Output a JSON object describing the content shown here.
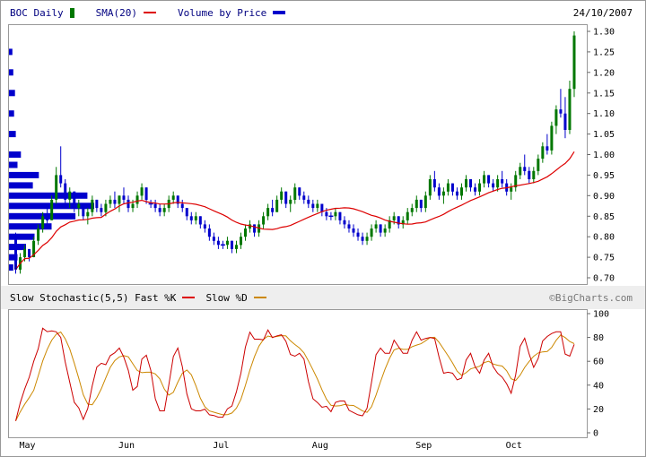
{
  "header": {
    "symbol_label": "BOC Daily",
    "sma_label": "SMA(20)",
    "vbp_label": "Volume by Price",
    "date": "24/10/2007"
  },
  "footer_legend": {
    "stoch_label": "Slow Stochastic(5,5) Fast %K",
    "slowd_label": "Slow %D",
    "copyright": "©BigCharts.com"
  },
  "colors": {
    "up": "#007700",
    "down": "#0000cc",
    "sma": "#dd0000",
    "vbp": "#0000cc",
    "panel_border": "#999999",
    "legend_text": "#000080",
    "copyright_text": "#777777",
    "separator_bg": "#eeeeee"
  },
  "chart_data": [
    {
      "type": "candlestick",
      "title": "BOC Daily",
      "ylim": [
        0.7,
        1.3
      ],
      "y_ticks": [
        0.7,
        0.75,
        0.8,
        0.85,
        0.9,
        0.95,
        1.0,
        1.05,
        1.1,
        1.15,
        1.2,
        1.25,
        1.3
      ],
      "months": [
        "May",
        "Jun",
        "Jul",
        "Aug",
        "Sep",
        "Oct"
      ],
      "month_start_index": [
        0,
        22,
        43,
        65,
        88,
        108
      ],
      "sma_period": 20,
      "ohlc": [
        [
          0.8,
          0.81,
          0.71,
          0.72
        ],
        [
          0.72,
          0.76,
          0.71,
          0.75
        ],
        [
          0.75,
          0.78,
          0.74,
          0.77
        ],
        [
          0.77,
          0.77,
          0.74,
          0.75
        ],
        [
          0.75,
          0.8,
          0.75,
          0.79
        ],
        [
          0.79,
          0.83,
          0.78,
          0.82
        ],
        [
          0.82,
          0.86,
          0.81,
          0.85
        ],
        [
          0.85,
          0.88,
          0.83,
          0.84
        ],
        [
          0.84,
          0.9,
          0.84,
          0.89
        ],
        [
          0.89,
          0.97,
          0.88,
          0.95
        ],
        [
          0.95,
          1.02,
          0.92,
          0.93
        ],
        [
          0.93,
          0.94,
          0.88,
          0.89
        ],
        [
          0.89,
          0.92,
          0.87,
          0.91
        ],
        [
          0.91,
          0.91,
          0.86,
          0.87
        ],
        [
          0.87,
          0.89,
          0.85,
          0.88
        ],
        [
          0.88,
          0.88,
          0.84,
          0.85
        ],
        [
          0.85,
          0.87,
          0.83,
          0.86
        ],
        [
          0.86,
          0.9,
          0.85,
          0.89
        ],
        [
          0.89,
          0.89,
          0.86,
          0.87
        ],
        [
          0.87,
          0.88,
          0.85,
          0.86
        ],
        [
          0.86,
          0.89,
          0.85,
          0.88
        ],
        [
          0.88,
          0.9,
          0.87,
          0.89
        ],
        [
          0.89,
          0.91,
          0.87,
          0.88
        ],
        [
          0.88,
          0.9,
          0.86,
          0.9
        ],
        [
          0.9,
          0.92,
          0.88,
          0.89
        ],
        [
          0.89,
          0.9,
          0.86,
          0.87
        ],
        [
          0.87,
          0.89,
          0.86,
          0.88
        ],
        [
          0.88,
          0.91,
          0.87,
          0.9
        ],
        [
          0.9,
          0.93,
          0.89,
          0.92
        ],
        [
          0.92,
          0.92,
          0.88,
          0.89
        ],
        [
          0.88,
          0.89,
          0.87,
          0.88
        ],
        [
          0.88,
          0.89,
          0.86,
          0.87
        ],
        [
          0.87,
          0.88,
          0.85,
          0.86
        ],
        [
          0.86,
          0.88,
          0.85,
          0.87
        ],
        [
          0.87,
          0.9,
          0.86,
          0.89
        ],
        [
          0.89,
          0.91,
          0.88,
          0.9
        ],
        [
          0.9,
          0.9,
          0.87,
          0.88
        ],
        [
          0.88,
          0.89,
          0.86,
          0.87
        ],
        [
          0.87,
          0.87,
          0.84,
          0.85
        ],
        [
          0.85,
          0.86,
          0.83,
          0.84
        ],
        [
          0.84,
          0.86,
          0.83,
          0.85
        ],
        [
          0.85,
          0.85,
          0.82,
          0.83
        ],
        [
          0.83,
          0.84,
          0.81,
          0.82
        ],
        [
          0.82,
          0.83,
          0.79,
          0.8
        ],
        [
          0.8,
          0.81,
          0.78,
          0.79
        ],
        [
          0.79,
          0.8,
          0.77,
          0.78
        ],
        [
          0.78,
          0.79,
          0.77,
          0.78
        ],
        [
          0.78,
          0.8,
          0.77,
          0.79
        ],
        [
          0.79,
          0.79,
          0.76,
          0.77
        ],
        [
          0.77,
          0.79,
          0.76,
          0.78
        ],
        [
          0.78,
          0.81,
          0.77,
          0.8
        ],
        [
          0.8,
          0.83,
          0.79,
          0.82
        ],
        [
          0.82,
          0.84,
          0.81,
          0.83
        ],
        [
          0.83,
          0.83,
          0.8,
          0.81
        ],
        [
          0.81,
          0.84,
          0.8,
          0.83
        ],
        [
          0.83,
          0.86,
          0.82,
          0.85
        ],
        [
          0.85,
          0.88,
          0.84,
          0.87
        ],
        [
          0.87,
          0.89,
          0.85,
          0.86
        ],
        [
          0.86,
          0.9,
          0.86,
          0.89
        ],
        [
          0.89,
          0.92,
          0.88,
          0.91
        ],
        [
          0.91,
          0.91,
          0.87,
          0.88
        ],
        [
          0.88,
          0.9,
          0.86,
          0.89
        ],
        [
          0.89,
          0.93,
          0.88,
          0.92
        ],
        [
          0.92,
          0.92,
          0.89,
          0.9
        ],
        [
          0.9,
          0.91,
          0.88,
          0.89
        ],
        [
          0.89,
          0.9,
          0.87,
          0.88
        ],
        [
          0.88,
          0.89,
          0.86,
          0.87
        ],
        [
          0.87,
          0.89,
          0.86,
          0.88
        ],
        [
          0.88,
          0.88,
          0.85,
          0.86
        ],
        [
          0.86,
          0.87,
          0.84,
          0.85
        ],
        [
          0.85,
          0.86,
          0.84,
          0.85
        ],
        [
          0.85,
          0.87,
          0.84,
          0.86
        ],
        [
          0.86,
          0.86,
          0.83,
          0.84
        ],
        [
          0.84,
          0.85,
          0.82,
          0.83
        ],
        [
          0.83,
          0.84,
          0.81,
          0.82
        ],
        [
          0.82,
          0.83,
          0.8,
          0.81
        ],
        [
          0.81,
          0.82,
          0.79,
          0.8
        ],
        [
          0.8,
          0.81,
          0.78,
          0.79
        ],
        [
          0.79,
          0.81,
          0.78,
          0.8
        ],
        [
          0.8,
          0.83,
          0.79,
          0.82
        ],
        [
          0.82,
          0.84,
          0.81,
          0.83
        ],
        [
          0.83,
          0.83,
          0.8,
          0.81
        ],
        [
          0.81,
          0.83,
          0.8,
          0.82
        ],
        [
          0.82,
          0.85,
          0.81,
          0.84
        ],
        [
          0.84,
          0.86,
          0.83,
          0.85
        ],
        [
          0.85,
          0.85,
          0.82,
          0.83
        ],
        [
          0.83,
          0.85,
          0.82,
          0.84
        ],
        [
          0.84,
          0.87,
          0.83,
          0.86
        ],
        [
          0.86,
          0.88,
          0.85,
          0.87
        ],
        [
          0.87,
          0.9,
          0.86,
          0.89
        ],
        [
          0.89,
          0.89,
          0.86,
          0.87
        ],
        [
          0.87,
          0.91,
          0.86,
          0.9
        ],
        [
          0.9,
          0.95,
          0.89,
          0.94
        ],
        [
          0.94,
          0.96,
          0.91,
          0.92
        ],
        [
          0.92,
          0.93,
          0.89,
          0.9
        ],
        [
          0.9,
          0.92,
          0.88,
          0.91
        ],
        [
          0.91,
          0.94,
          0.9,
          0.93
        ],
        [
          0.93,
          0.93,
          0.9,
          0.91
        ],
        [
          0.91,
          0.92,
          0.89,
          0.9
        ],
        [
          0.9,
          0.93,
          0.89,
          0.92
        ],
        [
          0.92,
          0.95,
          0.91,
          0.94
        ],
        [
          0.94,
          0.94,
          0.91,
          0.92
        ],
        [
          0.92,
          0.93,
          0.9,
          0.91
        ],
        [
          0.91,
          0.94,
          0.9,
          0.93
        ],
        [
          0.93,
          0.96,
          0.92,
          0.95
        ],
        [
          0.95,
          0.95,
          0.92,
          0.93
        ],
        [
          0.93,
          0.94,
          0.91,
          0.92
        ],
        [
          0.92,
          0.95,
          0.91,
          0.94
        ],
        [
          0.94,
          0.96,
          0.92,
          0.93
        ],
        [
          0.93,
          0.94,
          0.9,
          0.91
        ],
        [
          0.91,
          0.93,
          0.89,
          0.92
        ],
        [
          0.92,
          0.96,
          0.91,
          0.95
        ],
        [
          0.95,
          0.98,
          0.94,
          0.97
        ],
        [
          0.97,
          1.0,
          0.95,
          0.96
        ],
        [
          0.96,
          0.97,
          0.93,
          0.94
        ],
        [
          0.94,
          0.97,
          0.93,
          0.96
        ],
        [
          0.96,
          1.0,
          0.95,
          0.99
        ],
        [
          0.99,
          1.03,
          0.98,
          1.02
        ],
        [
          1.02,
          1.05,
          1.0,
          1.01
        ],
        [
          1.01,
          1.08,
          1.0,
          1.07
        ],
        [
          1.07,
          1.12,
          1.05,
          1.11
        ],
        [
          1.11,
          1.16,
          1.09,
          1.1
        ],
        [
          1.1,
          1.14,
          1.04,
          1.06
        ],
        [
          1.06,
          1.18,
          1.05,
          1.16
        ],
        [
          1.16,
          1.3,
          1.14,
          1.29
        ]
      ],
      "volume_by_price": [
        [
          1.25,
          0.04
        ],
        [
          1.2,
          0.05
        ],
        [
          1.15,
          0.07
        ],
        [
          1.1,
          0.06
        ],
        [
          1.05,
          0.08
        ],
        [
          1.0,
          0.14
        ],
        [
          0.975,
          0.1
        ],
        [
          0.95,
          0.35
        ],
        [
          0.925,
          0.28
        ],
        [
          0.9,
          0.92
        ],
        [
          0.875,
          1.0
        ],
        [
          0.85,
          0.78
        ],
        [
          0.825,
          0.5
        ],
        [
          0.8,
          0.3
        ],
        [
          0.775,
          0.2
        ],
        [
          0.75,
          0.1
        ],
        [
          0.725,
          0.05
        ]
      ],
      "annotations": [
        {
          "type": "down-arrow",
          "index": 0,
          "price": 0.73
        }
      ]
    },
    {
      "type": "line",
      "title": "Slow Stochastic(5,5)",
      "ylim": [
        0,
        100
      ],
      "y_ticks": [
        0,
        20,
        40,
        60,
        80,
        100
      ],
      "k_period": 5,
      "k_smoothing": 3,
      "d_period": 5,
      "series": [
        {
          "name": "Fast %K",
          "color": "#cc0000"
        },
        {
          "name": "Slow %D",
          "color": "#cc8800"
        }
      ]
    }
  ]
}
